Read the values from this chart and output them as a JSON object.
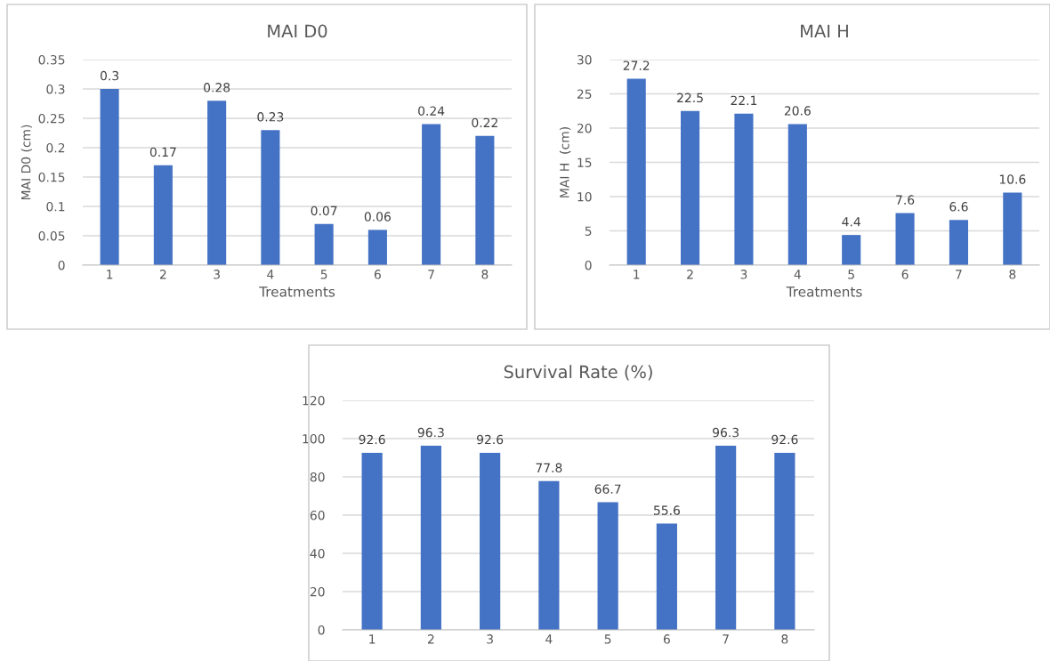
{
  "chart_data": [
    {
      "type": "bar",
      "title": "MAI D0",
      "xlabel": "Treatments",
      "ylabel": "MAI D0 (cm)",
      "categories": [
        "1",
        "2",
        "3",
        "4",
        "5",
        "6",
        "7",
        "8"
      ],
      "values": [
        0.3,
        0.17,
        0.28,
        0.23,
        0.07,
        0.06,
        0.24,
        0.22
      ],
      "color": "#4472c4",
      "ylim": [
        0,
        0.35
      ],
      "yticks": [
        0,
        0.05,
        0.1,
        0.15,
        0.2,
        0.25,
        0.3,
        0.35
      ],
      "grid": "y",
      "data_labels": true,
      "legend": false
    },
    {
      "type": "bar",
      "title": "MAI H",
      "xlabel": "Treatments",
      "ylabel": "MAI H  (cm)",
      "categories": [
        "1",
        "2",
        "3",
        "4",
        "5",
        "6",
        "7",
        "8"
      ],
      "values": [
        27.2,
        22.5,
        22.1,
        20.6,
        4.4,
        7.6,
        6.6,
        10.6
      ],
      "color": "#4472c4",
      "ylim": [
        0,
        30
      ],
      "yticks": [
        0,
        5,
        10,
        15,
        20,
        25,
        30
      ],
      "grid": "y",
      "data_labels": true,
      "legend": false
    },
    {
      "type": "bar",
      "title": "Survival Rate (%)",
      "categories": [
        "1",
        "2",
        "3",
        "4",
        "5",
        "6",
        "7",
        "8"
      ],
      "values": [
        92.6,
        96.3,
        92.6,
        77.8,
        66.7,
        55.6,
        96.3,
        92.6
      ],
      "color": "#4472c4",
      "ylim": [
        0,
        120
      ],
      "yticks": [
        0,
        20,
        40,
        60,
        80,
        100,
        120
      ],
      "grid": "y",
      "data_labels": true,
      "legend": false
    }
  ]
}
